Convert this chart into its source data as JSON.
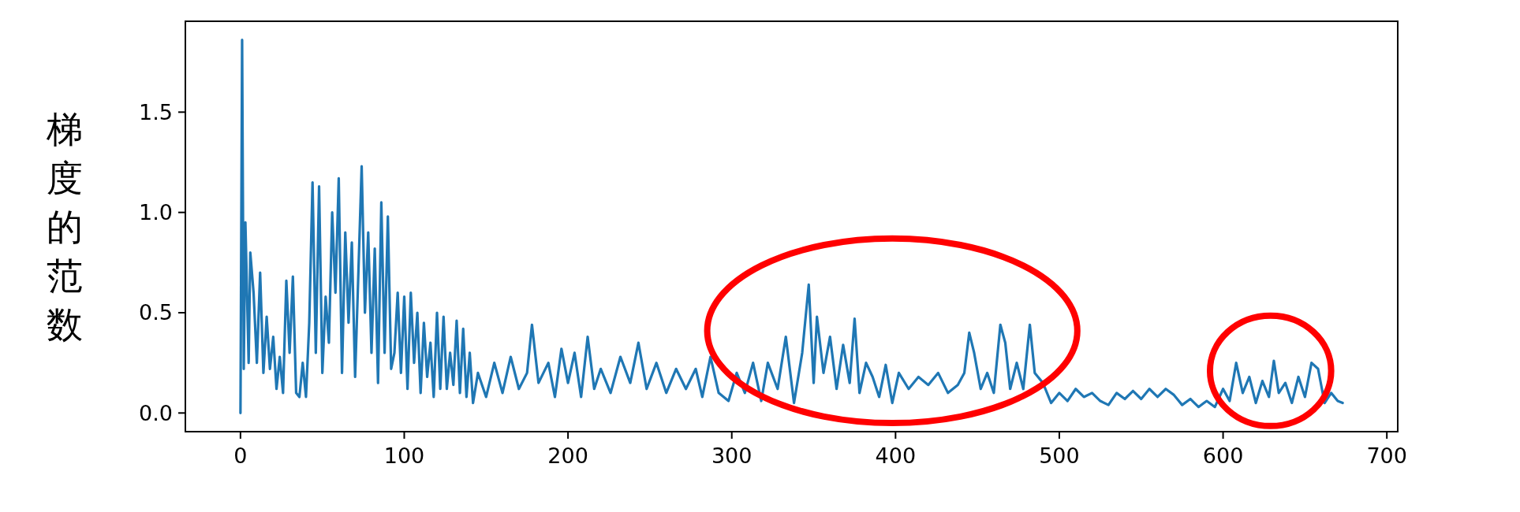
{
  "chart_data": {
    "type": "line",
    "ylabel": "梯度的范数",
    "color": "#1f77b4",
    "xlim": [
      -33.65,
      706.65
    ],
    "ylim": [
      -0.093,
      1.953
    ],
    "xticks": [
      0,
      100,
      200,
      300,
      400,
      500,
      600,
      700
    ],
    "yticks": [
      {
        "value": 0,
        "label": "0.0"
      },
      {
        "value": 0.5,
        "label": "0.5"
      },
      {
        "value": 1,
        "label": "1.0"
      },
      {
        "value": 1.5,
        "label": "1.5"
      }
    ],
    "x": [
      0,
      1,
      2,
      3,
      5,
      6,
      8,
      10,
      12,
      14,
      16,
      18,
      20,
      22,
      24,
      26,
      28,
      30,
      32,
      34,
      36,
      38,
      40,
      42,
      44,
      46,
      48,
      50,
      52,
      54,
      56,
      58,
      60,
      62,
      64,
      66,
      68,
      70,
      72,
      74,
      76,
      78,
      80,
      82,
      84,
      86,
      88,
      90,
      92,
      94,
      96,
      98,
      100,
      102,
      104,
      106,
      108,
      110,
      112,
      114,
      116,
      118,
      120,
      122,
      124,
      126,
      128,
      130,
      132,
      134,
      136,
      138,
      140,
      142,
      145,
      150,
      155,
      160,
      165,
      170,
      175,
      178,
      182,
      188,
      192,
      196,
      200,
      204,
      208,
      212,
      216,
      220,
      226,
      232,
      238,
      243,
      248,
      254,
      260,
      266,
      272,
      278,
      282,
      287,
      292,
      298,
      303,
      308,
      313,
      318,
      322,
      328,
      333,
      338,
      343,
      347,
      350,
      352,
      356,
      360,
      364,
      368,
      372,
      375,
      378,
      382,
      386,
      390,
      394,
      398,
      402,
      408,
      414,
      420,
      426,
      432,
      438,
      442,
      445,
      448,
      452,
      456,
      460,
      464,
      467,
      470,
      474,
      478,
      482,
      485,
      490,
      495,
      500,
      505,
      510,
      515,
      520,
      525,
      530,
      535,
      540,
      545,
      550,
      555,
      560,
      565,
      570,
      575,
      580,
      585,
      590,
      595,
      600,
      604,
      608,
      612,
      616,
      620,
      624,
      628,
      631,
      634,
      638,
      642,
      646,
      650,
      654,
      658,
      662,
      666,
      670,
      673
    ],
    "values": [
      0.0,
      1.86,
      0.22,
      0.95,
      0.25,
      0.8,
      0.6,
      0.25,
      0.7,
      0.2,
      0.48,
      0.22,
      0.38,
      0.12,
      0.28,
      0.1,
      0.66,
      0.3,
      0.68,
      0.1,
      0.08,
      0.25,
      0.08,
      0.45,
      1.15,
      0.3,
      1.13,
      0.2,
      0.58,
      0.35,
      1.0,
      0.6,
      1.17,
      0.2,
      0.9,
      0.45,
      0.85,
      0.18,
      0.7,
      1.23,
      0.5,
      0.9,
      0.3,
      0.82,
      0.15,
      1.05,
      0.3,
      0.98,
      0.22,
      0.3,
      0.6,
      0.2,
      0.58,
      0.12,
      0.6,
      0.25,
      0.5,
      0.1,
      0.45,
      0.18,
      0.35,
      0.08,
      0.5,
      0.12,
      0.48,
      0.12,
      0.3,
      0.14,
      0.46,
      0.1,
      0.42,
      0.08,
      0.3,
      0.05,
      0.2,
      0.08,
      0.25,
      0.1,
      0.28,
      0.12,
      0.2,
      0.44,
      0.15,
      0.25,
      0.08,
      0.32,
      0.15,
      0.3,
      0.08,
      0.38,
      0.12,
      0.22,
      0.1,
      0.28,
      0.15,
      0.35,
      0.12,
      0.25,
      0.1,
      0.22,
      0.12,
      0.22,
      0.08,
      0.28,
      0.1,
      0.06,
      0.2,
      0.1,
      0.25,
      0.06,
      0.25,
      0.12,
      0.38,
      0.05,
      0.3,
      0.64,
      0.15,
      0.48,
      0.2,
      0.38,
      0.12,
      0.34,
      0.15,
      0.47,
      0.1,
      0.25,
      0.18,
      0.08,
      0.24,
      0.05,
      0.2,
      0.12,
      0.18,
      0.14,
      0.2,
      0.1,
      0.14,
      0.2,
      0.4,
      0.3,
      0.12,
      0.2,
      0.1,
      0.44,
      0.35,
      0.12,
      0.25,
      0.12,
      0.44,
      0.2,
      0.15,
      0.05,
      0.1,
      0.06,
      0.12,
      0.08,
      0.1,
      0.06,
      0.04,
      0.1,
      0.07,
      0.11,
      0.07,
      0.12,
      0.08,
      0.12,
      0.09,
      0.04,
      0.07,
      0.03,
      0.06,
      0.03,
      0.12,
      0.06,
      0.25,
      0.1,
      0.18,
      0.05,
      0.16,
      0.08,
      0.26,
      0.1,
      0.15,
      0.05,
      0.18,
      0.08,
      0.25,
      0.22,
      0.05,
      0.1,
      0.06,
      0.05
    ]
  }
}
